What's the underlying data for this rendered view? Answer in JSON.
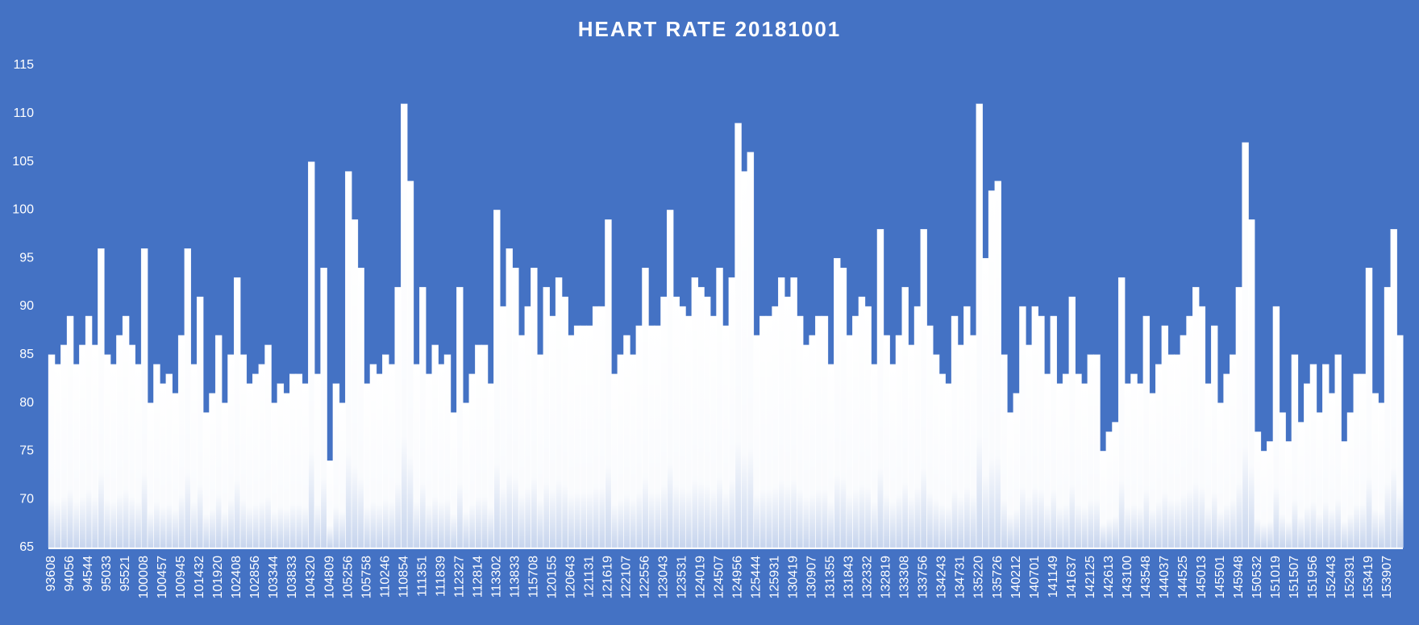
{
  "chart_data": {
    "type": "bar",
    "title": "HEART RATE 20181001",
    "color": "#ffffff",
    "background": "#4472c4",
    "ylim": [
      65,
      115
    ],
    "yticks": [
      65,
      70,
      75,
      80,
      85,
      90,
      95,
      100,
      105,
      110,
      115
    ],
    "categories": [
      "93608",
      null,
      null,
      "94056",
      null,
      null,
      "94544",
      null,
      null,
      "95033",
      null,
      null,
      "95521",
      null,
      null,
      "100008",
      null,
      null,
      "100457",
      null,
      null,
      "100945",
      null,
      null,
      "101432",
      null,
      null,
      "101920",
      null,
      null,
      "102408",
      null,
      null,
      "102856",
      null,
      null,
      "103344",
      null,
      null,
      "103833",
      null,
      null,
      "104320",
      null,
      null,
      "104809",
      null,
      null,
      "105256",
      null,
      null,
      "105758",
      null,
      null,
      "110246",
      null,
      null,
      "110854",
      null,
      null,
      "111351",
      null,
      null,
      "111839",
      null,
      null,
      "112327",
      null,
      null,
      "112814",
      null,
      null,
      "113302",
      null,
      null,
      "113833",
      null,
      null,
      "115708",
      null,
      null,
      "120155",
      null,
      null,
      "120643",
      null,
      null,
      "121131",
      null,
      null,
      "121619",
      null,
      null,
      "122107",
      null,
      null,
      "122556",
      null,
      null,
      "123043",
      null,
      null,
      "123531",
      null,
      null,
      "124019",
      null,
      null,
      "124507",
      null,
      null,
      "124956",
      null,
      null,
      "125444",
      null,
      null,
      "125931",
      null,
      null,
      "130419",
      null,
      null,
      "130907",
      null,
      null,
      "131355",
      null,
      null,
      "131843",
      null,
      null,
      "132332",
      null,
      null,
      "132819",
      null,
      null,
      "133308",
      null,
      null,
      "133756",
      null,
      null,
      "134243",
      null,
      null,
      "134731",
      null,
      null,
      "135220",
      null,
      null,
      "135726",
      null,
      null,
      "140212",
      null,
      null,
      "140701",
      null,
      null,
      "141149",
      null,
      null,
      "141637",
      null,
      null,
      "142125",
      null,
      null,
      "142613",
      null,
      null,
      "143100",
      null,
      null,
      "143548",
      null,
      null,
      "144037",
      null,
      null,
      "144525",
      null,
      null,
      "145013",
      null,
      null,
      "145501",
      null,
      null,
      "145948",
      null,
      null,
      "150532",
      null,
      null,
      "151019",
      null,
      null,
      "151507",
      null,
      null,
      "151956",
      null,
      null,
      "152443",
      null,
      null,
      "152931",
      null,
      null,
      "153419",
      null,
      null,
      "153907",
      null,
      null
    ],
    "values": [
      85,
      84,
      86,
      89,
      84,
      86,
      89,
      86,
      96,
      85,
      84,
      87,
      89,
      86,
      84,
      96,
      80,
      84,
      82,
      83,
      81,
      87,
      96,
      84,
      91,
      79,
      81,
      87,
      80,
      85,
      93,
      85,
      82,
      83,
      84,
      86,
      80,
      82,
      81,
      83,
      83,
      82,
      105,
      83,
      94,
      74,
      82,
      80,
      104,
      99,
      94,
      82,
      84,
      83,
      85,
      84,
      92,
      111,
      103,
      84,
      92,
      83,
      86,
      84,
      85,
      79,
      92,
      80,
      83,
      86,
      86,
      82,
      100,
      90,
      96,
      94,
      87,
      90,
      94,
      85,
      92,
      89,
      93,
      91,
      87,
      88,
      88,
      88,
      90,
      90,
      99,
      83,
      85,
      87,
      85,
      88,
      94,
      88,
      88,
      91,
      100,
      91,
      90,
      89,
      93,
      92,
      91,
      89,
      94,
      88,
      93,
      109,
      104,
      106,
      87,
      89,
      89,
      90,
      93,
      91,
      93,
      89,
      86,
      87,
      89,
      89,
      84,
      95,
      94,
      87,
      89,
      91,
      90,
      84,
      98,
      87,
      84,
      87,
      92,
      86,
      90,
      98,
      88,
      85,
      83,
      82,
      89,
      86,
      90,
      87,
      111,
      95,
      102,
      103,
      85,
      79,
      81,
      90,
      86,
      90,
      89,
      83,
      89,
      82,
      83,
      91,
      83,
      82,
      85,
      85,
      75,
      77,
      78,
      93,
      82,
      83,
      82,
      89,
      81,
      84,
      88,
      85,
      85,
      87,
      89,
      92,
      90,
      82,
      88,
      80,
      83,
      85,
      92,
      107,
      99,
      77,
      75,
      76,
      90,
      79,
      76,
      85,
      78,
      82,
      84,
      79,
      84,
      81,
      85,
      76,
      79,
      83,
      83,
      94,
      81,
      80,
      92,
      98,
      87
    ]
  }
}
